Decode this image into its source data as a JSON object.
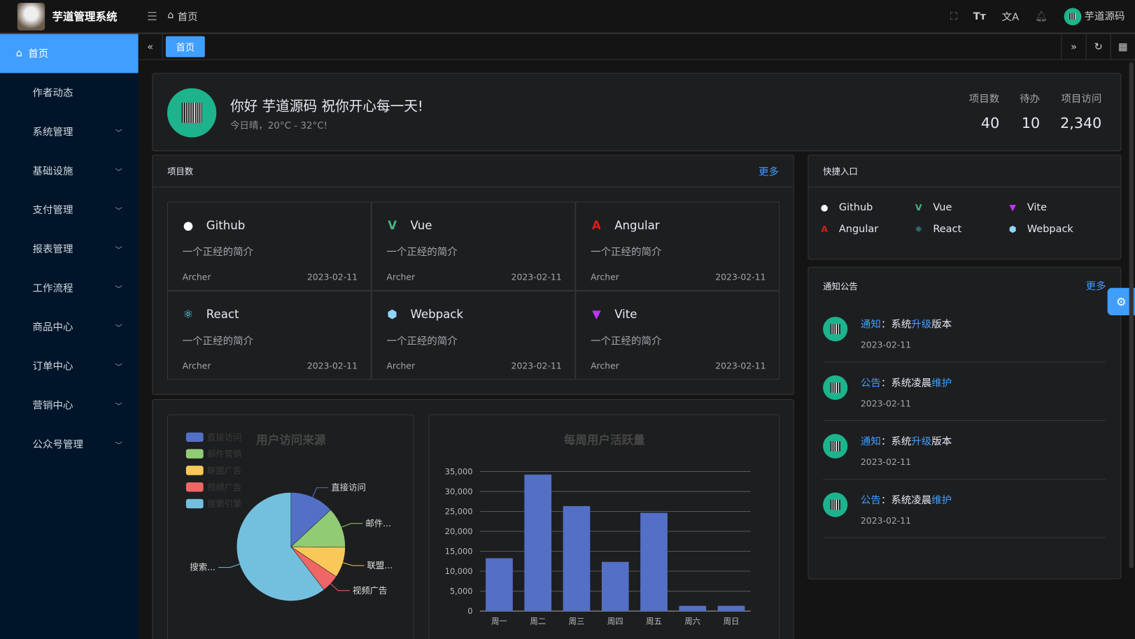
{
  "app": {
    "title": "芋道管理系统"
  },
  "header": {
    "breadcrumb": "首页",
    "user": "芋道源码",
    "icons": [
      "fullscreen-icon",
      "font-size-icon",
      "translate-icon",
      "bell-icon"
    ]
  },
  "sidebar": {
    "items": [
      {
        "label": "首页",
        "active": true
      },
      {
        "label": "作者动态"
      },
      {
        "label": "系统管理",
        "sub": true
      },
      {
        "label": "基础设施",
        "sub": true
      },
      {
        "label": "支付管理",
        "sub": true
      },
      {
        "label": "报表管理",
        "sub": true
      },
      {
        "label": "工作流程",
        "sub": true
      },
      {
        "label": "商品中心",
        "sub": true
      },
      {
        "label": "订单中心",
        "sub": true
      },
      {
        "label": "营销中心",
        "sub": true
      },
      {
        "label": "公众号管理",
        "sub": true
      }
    ]
  },
  "tabs": [
    {
      "label": "首页"
    }
  ],
  "welcome": {
    "greeting": "你好 芋道源码 祝你开心每一天!",
    "weather": "今日晴，20°C - 32°C!",
    "stats": [
      {
        "label": "项目数",
        "value": "40"
      },
      {
        "label": "待办",
        "value": "10"
      },
      {
        "label": "项目访问",
        "value": "2,340"
      }
    ]
  },
  "projects": {
    "title": "项目数",
    "more": "更多",
    "items": [
      {
        "name": "Github",
        "desc": "一个正经的简介",
        "author": "Archer",
        "date": "2023-02-11",
        "icon": "github-icon",
        "color": "#ffffff"
      },
      {
        "name": "Vue",
        "desc": "一个正经的简介",
        "author": "Archer",
        "date": "2023-02-11",
        "icon": "vue-icon",
        "color": "#42b883"
      },
      {
        "name": "Angular",
        "desc": "一个正经的简介",
        "author": "Archer",
        "date": "2023-02-11",
        "icon": "angular-icon",
        "color": "#dd1b16"
      },
      {
        "name": "React",
        "desc": "一个正经的简介",
        "author": "Archer",
        "date": "2023-02-11",
        "icon": "react-icon",
        "color": "#61dafb"
      },
      {
        "name": "Webpack",
        "desc": "一个正经的简介",
        "author": "Archer",
        "date": "2023-02-11",
        "icon": "webpack-icon",
        "color": "#8ed6fb"
      },
      {
        "name": "Vite",
        "desc": "一个正经的简介",
        "author": "Archer",
        "date": "2023-02-11",
        "icon": "vite-icon",
        "color": "#bd34fe"
      }
    ]
  },
  "shortcuts": {
    "title": "快捷入口",
    "items": [
      {
        "name": "Github",
        "color": "#ffffff"
      },
      {
        "name": "Vue",
        "color": "#42b883"
      },
      {
        "name": "Vite",
        "color": "#bd34fe"
      },
      {
        "name": "Angular",
        "color": "#dd1b16"
      },
      {
        "name": "React",
        "color": "#61dafb"
      },
      {
        "name": "Webpack",
        "color": "#8ed6fb"
      }
    ]
  },
  "notices": {
    "title": "通知公告",
    "more": "更多",
    "items": [
      {
        "type": "通知",
        "sep": "：",
        "pre": "系统",
        "hl": "升级",
        "post": "版本",
        "date": "2023-02-11"
      },
      {
        "type": "公告",
        "sep": "：",
        "pre": "系统凌晨",
        "hl": "维护",
        "post": "",
        "date": "2023-02-11"
      },
      {
        "type": "通知",
        "sep": "：",
        "pre": "系统",
        "hl": "升级",
        "post": "版本",
        "date": "2023-02-11"
      },
      {
        "type": "公告",
        "sep": "：",
        "pre": "系统凌晨",
        "hl": "维护",
        "post": "",
        "date": "2023-02-11"
      }
    ]
  },
  "chart_data": [
    {
      "type": "pie",
      "title": "用户访问来源",
      "legend": "top-left",
      "categories": [
        "直接访问",
        "邮件营销",
        "联盟广告",
        "视频广告",
        "搜索引擎"
      ],
      "labels": [
        "直接访问",
        "邮件...",
        "联盟...",
        "视频广告",
        "搜索..."
      ],
      "values": [
        335,
        310,
        234,
        135,
        1548
      ],
      "colors": [
        "#5470c6",
        "#91cc75",
        "#fac858",
        "#ee6666",
        "#73c0de"
      ]
    },
    {
      "type": "bar",
      "title": "每周用户活跃量",
      "categories": [
        "周一",
        "周二",
        "周三",
        "周四",
        "周五",
        "周六",
        "周日"
      ],
      "values": [
        13253,
        34235,
        26321,
        12340,
        24643,
        1322,
        1324
      ],
      "ylim": [
        0,
        35000
      ],
      "yticks": [
        "0",
        "5,000",
        "10,000",
        "15,000",
        "20,000",
        "25,000",
        "30,000",
        "35,000"
      ],
      "color": "#5470c6",
      "grid": true
    }
  ]
}
